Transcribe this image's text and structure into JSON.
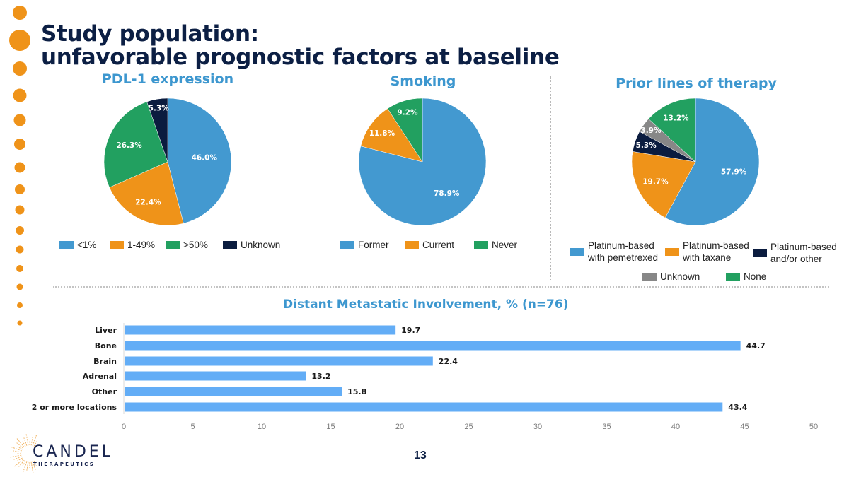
{
  "slide": {
    "title_line1": "Study population:",
    "title_line2": "unfavorable prognostic factors at baseline",
    "page_number": "13",
    "logo": {
      "name": "CANDEL",
      "subtitle": "THERAPEUTICS"
    },
    "accent_color": "#ef9319",
    "title_color": "#0c1f44"
  },
  "chart_data": [
    {
      "type": "pie",
      "title": "PDL-1 expression",
      "labels": [
        "<1%",
        "1-49%",
        ">50%",
        "Unknown"
      ],
      "values": [
        46.0,
        22.4,
        26.3,
        5.3
      ],
      "value_labels": [
        "46.0%",
        "22.4%",
        "26.3%",
        "5.3%"
      ],
      "colors": [
        "#4399d0",
        "#ef9319",
        "#22a060",
        "#0b1c3f"
      ],
      "legend": "bottom"
    },
    {
      "type": "pie",
      "title": "Smoking",
      "labels": [
        "Former",
        "Current",
        "Never"
      ],
      "values": [
        78.9,
        11.8,
        9.2
      ],
      "value_labels": [
        "78.9%",
        "11.8%",
        "9.2%"
      ],
      "colors": [
        "#4399d0",
        "#ef9319",
        "#22a060"
      ],
      "legend": "bottom"
    },
    {
      "type": "pie",
      "title": "Prior lines of therapy",
      "labels": [
        "Platinum-based with pemetrexed",
        "Platinum-based with taxane",
        "Platinum-based and/or other",
        "Unknown",
        "None"
      ],
      "values": [
        57.9,
        19.7,
        5.3,
        3.9,
        13.2
      ],
      "value_labels": [
        "57.9%",
        "19.7%",
        "5.3%",
        "3.9%",
        "13.2%"
      ],
      "colors": [
        "#4399d0",
        "#ef9319",
        "#0b1c3f",
        "#878787",
        "#22a060"
      ],
      "legend": "bottom"
    },
    {
      "type": "bar",
      "orientation": "horizontal",
      "title": "Distant Metastatic Involvement, % (n=76)",
      "categories": [
        "Liver",
        "Bone",
        "Brain",
        "Adrenal",
        "Other",
        "2 or more locations"
      ],
      "values": [
        19.7,
        44.7,
        22.4,
        13.2,
        15.8,
        43.4
      ],
      "value_labels": [
        "19.7",
        "44.7",
        "22.4",
        "13.2",
        "15.8",
        "43.4"
      ],
      "xlim": [
        0,
        50
      ],
      "xticks": [
        "0",
        "5",
        "10",
        "15",
        "20",
        "25",
        "30",
        "35",
        "40",
        "45",
        "50"
      ],
      "color": "#63adf6",
      "grid": false,
      "xlabel": "",
      "ylabel": ""
    }
  ]
}
